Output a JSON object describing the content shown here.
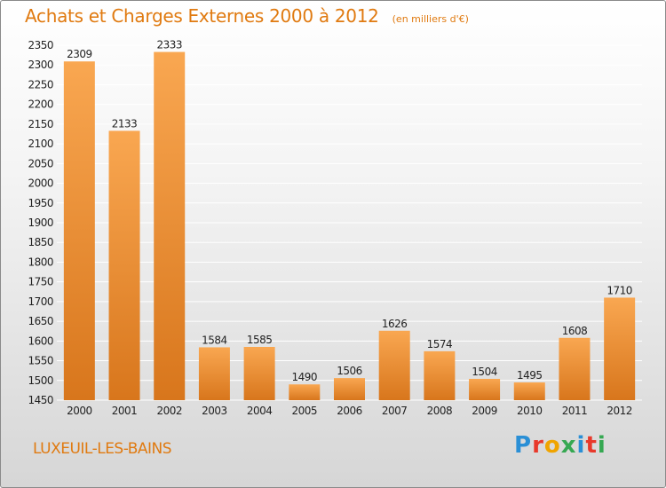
{
  "header": {
    "title": "Achats et Charges Externes 2000 à 2012",
    "unit": "(en milliers d'€)"
  },
  "footer": {
    "city": "LUXEUIL-LES-BAINS",
    "brand": "Proxiti",
    "brand_letters": [
      {
        "ch": "P",
        "color": "#2a8fd6"
      },
      {
        "ch": "r",
        "color": "#e8392b"
      },
      {
        "ch": "o",
        "color": "#f0a400"
      },
      {
        "ch": "x",
        "color": "#36a852"
      },
      {
        "ch": "i",
        "color": "#2a8fd6"
      },
      {
        "ch": "t",
        "color": "#e8392b"
      },
      {
        "ch": "i",
        "color": "#36a852"
      }
    ]
  },
  "colors": {
    "bar_light": "#f9a751",
    "bar_dark": "#d8761c",
    "text_orange": "#e07a10",
    "grid": "#ffffff",
    "axis_text": "#222222"
  },
  "chart_data": {
    "type": "bar",
    "title": "Achats et Charges Externes 2000 à 2012",
    "xlabel": "",
    "ylabel": "",
    "categories": [
      "2000",
      "2001",
      "2002",
      "2003",
      "2004",
      "2005",
      "2006",
      "2007",
      "2008",
      "2009",
      "2010",
      "2011",
      "2012"
    ],
    "values": [
      2309,
      2133,
      2333,
      1584,
      1585,
      1490,
      1506,
      1626,
      1574,
      1504,
      1495,
      1608,
      1710
    ],
    "ylim": [
      1450,
      2350
    ],
    "yticks": [
      1450,
      1500,
      1550,
      1600,
      1650,
      1700,
      1750,
      1800,
      1850,
      1900,
      1950,
      2000,
      2050,
      2100,
      2150,
      2200,
      2250,
      2300,
      2350
    ],
    "grid": true,
    "legend": "none"
  }
}
